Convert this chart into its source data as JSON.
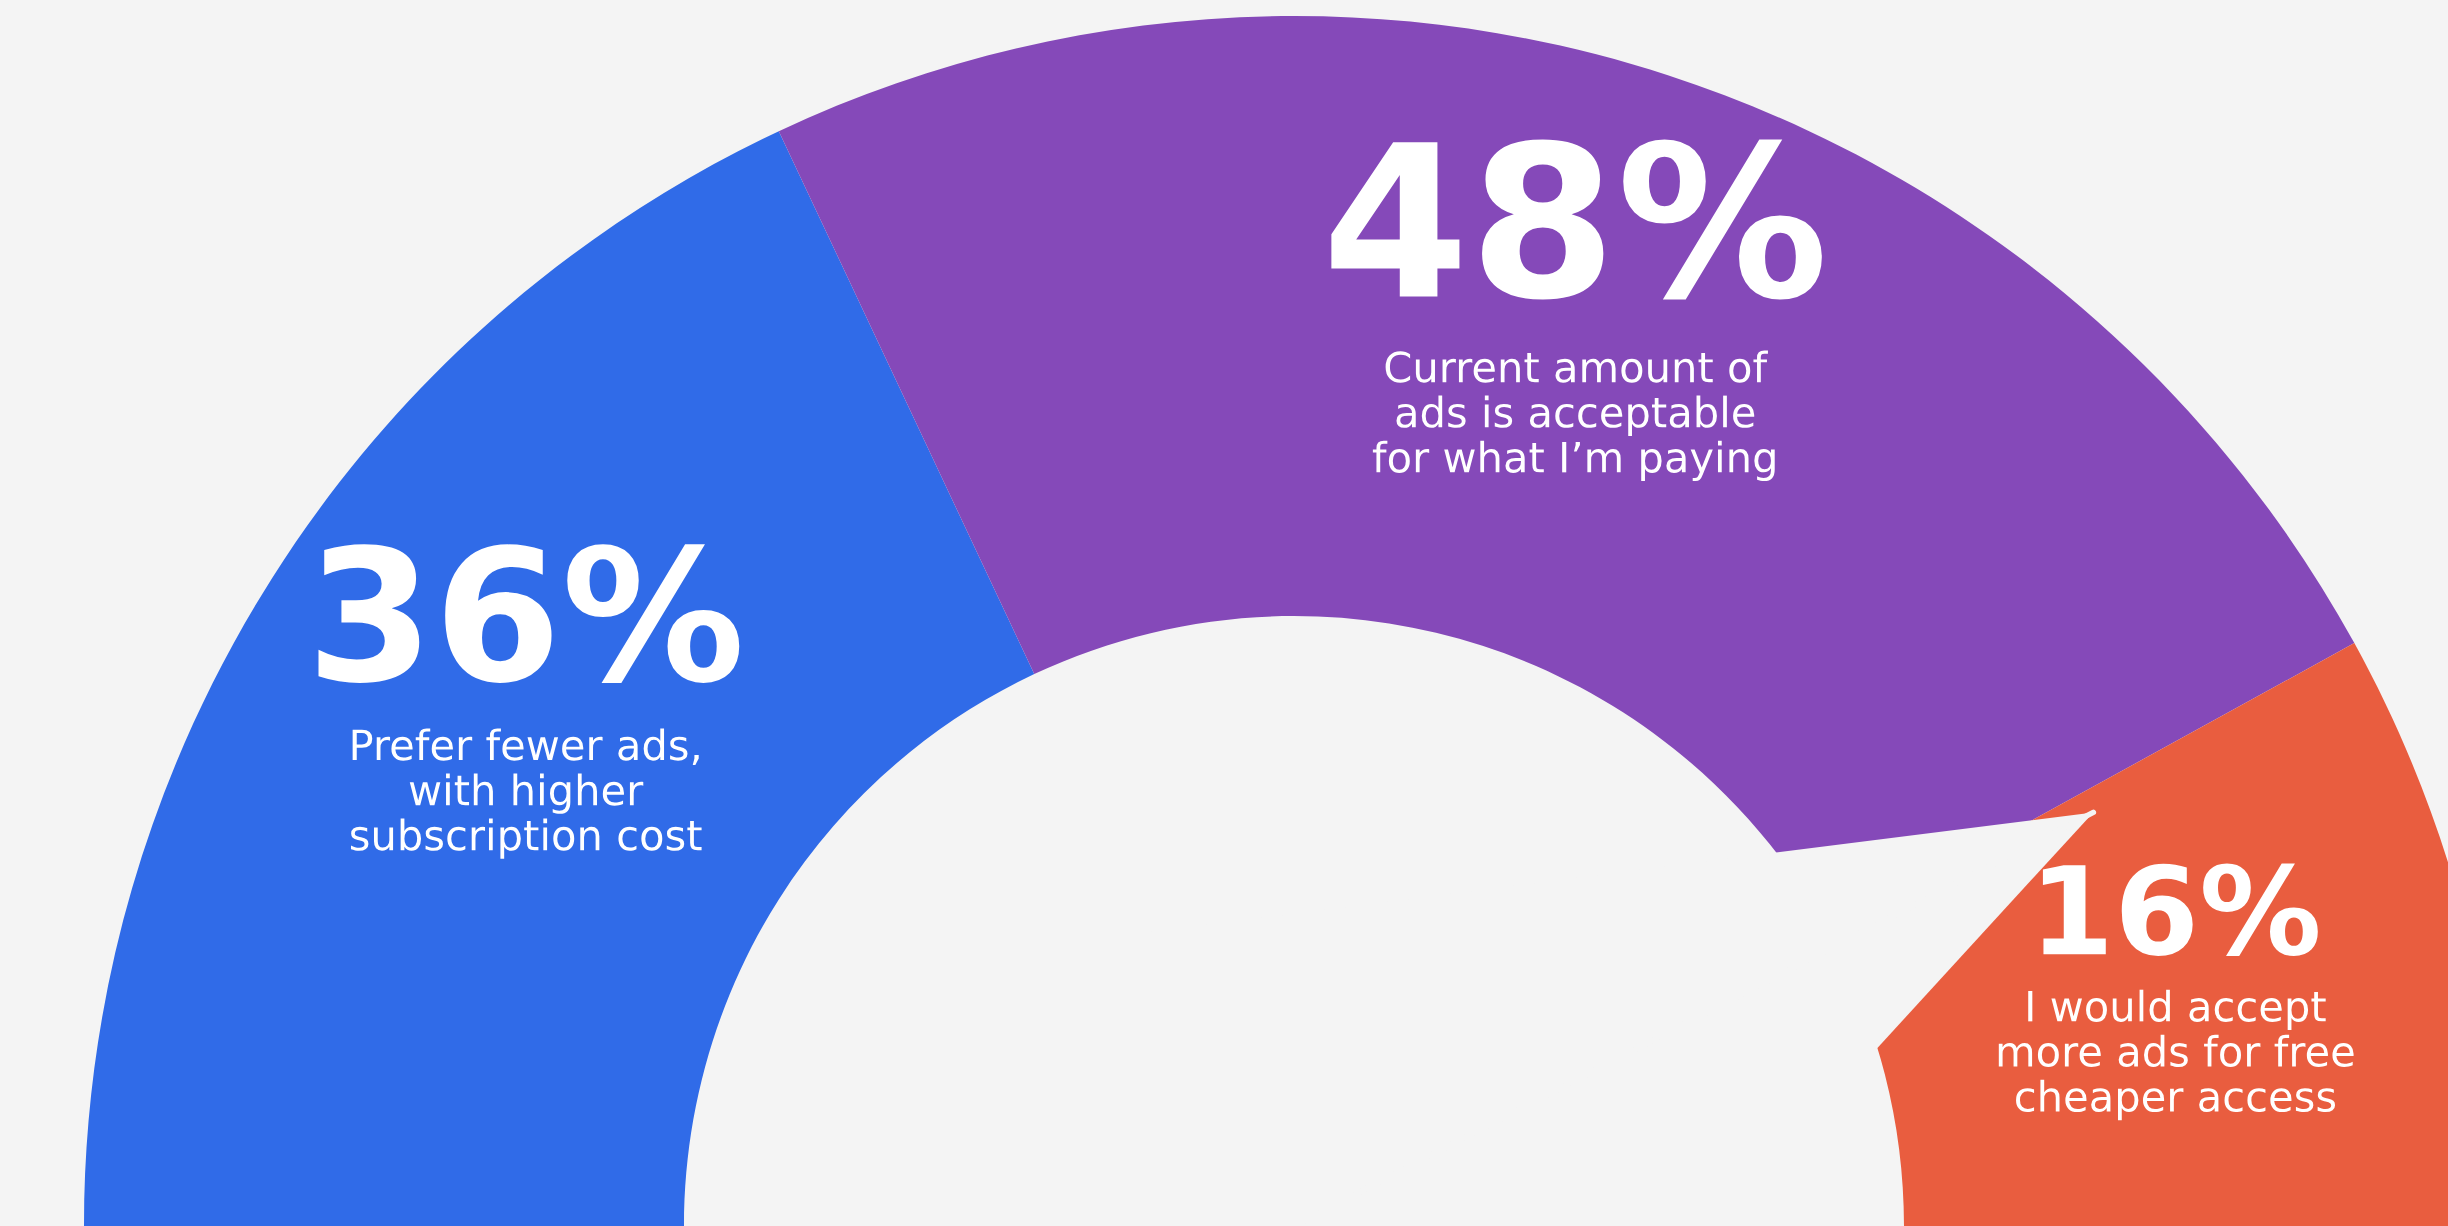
{
  "chart_data": {
    "type": "donut",
    "categories": [
      "Prefer fewer ads,\nwith higher\nsubscription cost",
      "Current amount of\nads is acceptable\nfor what I’m paying",
      "I would accept\nmore ads for free\ncheaper access"
    ],
    "values": [
      36,
      48,
      16
    ],
    "value_labels": [
      "36%",
      "48%",
      "16%"
    ],
    "colors": [
      "#306be8",
      "#8549b9",
      "#e95d3f"
    ],
    "needle": "I would accept\nmore ads for free\ncheaper access"
  }
}
